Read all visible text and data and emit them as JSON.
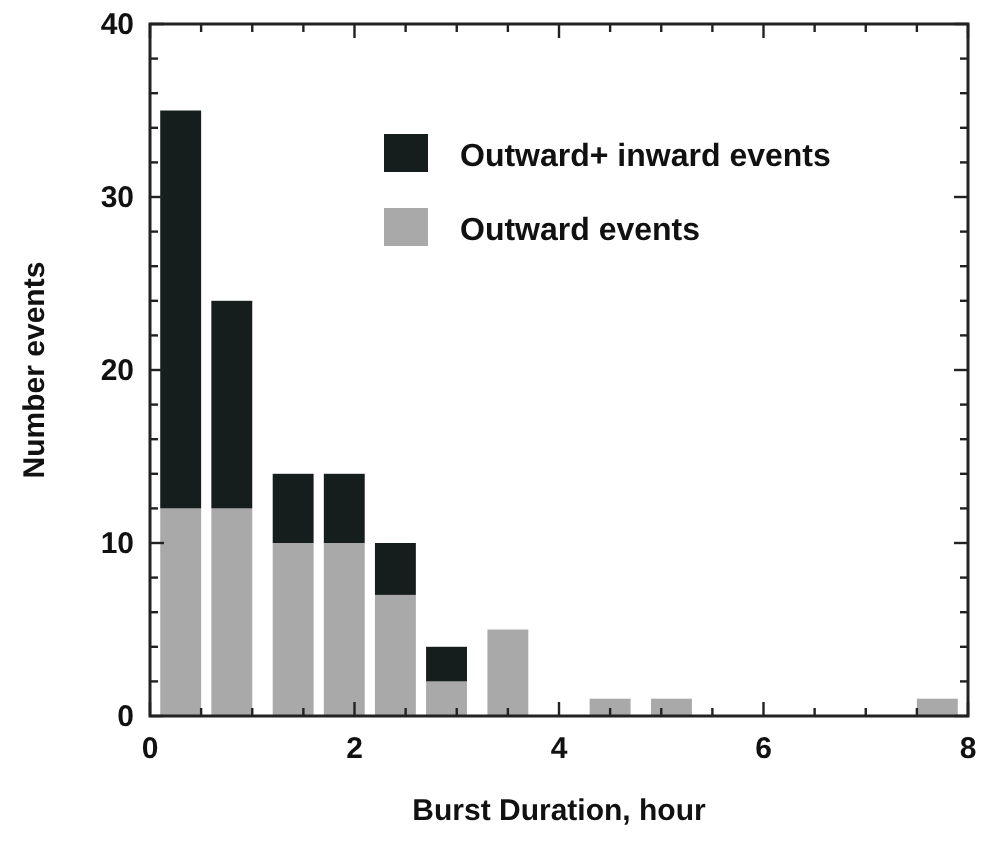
{
  "chart_data": {
    "type": "bar",
    "stacked": true,
    "xlabel": "Burst Duration, hour",
    "ylabel": "Number events",
    "x": [
      0.3,
      0.8,
      1.4,
      1.9,
      2.4,
      2.9,
      3.5,
      4.5,
      5.1,
      7.7
    ],
    "series": [
      {
        "name": "Outward events",
        "color": "#a9a9a9",
        "values": [
          12,
          12,
          10,
          10,
          7,
          2,
          5,
          1,
          1,
          1
        ]
      },
      {
        "name": "Outward+ inward events",
        "color": "#161e1d",
        "values": [
          23,
          12,
          4,
          4,
          3,
          2,
          null,
          null,
          null,
          null
        ]
      }
    ],
    "xlim": [
      0,
      8
    ],
    "xticks": [
      0,
      {
        "value": 0.5,
        "label": null
      },
      {
        "value": 1,
        "label": null
      },
      {
        "value": 1.5,
        "label": null
      },
      2,
      {
        "value": 2.5,
        "label": null
      },
      {
        "value": 3,
        "label": null
      },
      {
        "value": 3.5,
        "label": null
      },
      4,
      {
        "value": 4.5,
        "label": null
      },
      {
        "value": 5,
        "label": null
      },
      {
        "value": 5.5,
        "label": null
      },
      6,
      {
        "value": 6.5,
        "label": null
      },
      {
        "value": 7,
        "label": null
      },
      {
        "value": 7.5,
        "label": null
      },
      8
    ],
    "ylim": [
      0,
      40
    ],
    "yticks": [
      0,
      {
        "value": 2,
        "label": null
      },
      {
        "value": 4,
        "label": null
      },
      {
        "value": 6,
        "label": null
      },
      {
        "value": 8,
        "label": null
      },
      10,
      {
        "value": 12,
        "label": null
      },
      {
        "value": 14,
        "label": null
      },
      {
        "value": 16,
        "label": null
      },
      {
        "value": 18,
        "label": null
      },
      20,
      {
        "value": 22,
        "label": null
      },
      {
        "value": 24,
        "label": null
      },
      {
        "value": 26,
        "label": null
      },
      {
        "value": 28,
        "label": null
      },
      30,
      {
        "value": 32,
        "label": null
      },
      {
        "value": 34,
        "label": null
      },
      {
        "value": 36,
        "label": null
      },
      {
        "value": 38,
        "label": null
      },
      40
    ],
    "legend": "top right"
  }
}
